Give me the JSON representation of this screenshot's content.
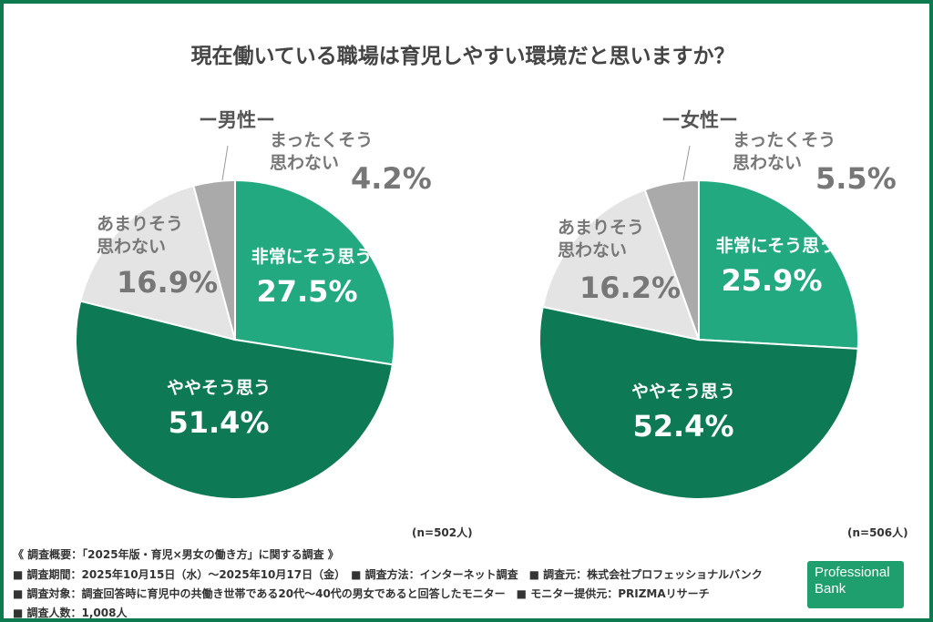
{
  "chart_data": [
    {
      "type": "pie",
      "title": "ー男性ー",
      "n_label": "(n=502人)",
      "start": "12 o'clock",
      "direction": "clockwise",
      "slices": [
        {
          "label": "非常にそう思う",
          "value": 27.5,
          "value_label": "27.5%",
          "color": "#22a97f"
        },
        {
          "label": "ややそう思う",
          "value": 51.4,
          "value_label": "51.4%",
          "color": "#0d7a55"
        },
        {
          "label": "あまりそう思わない",
          "value": 16.9,
          "value_label": "16.9%",
          "color": "#e4e4e4"
        },
        {
          "label": "まったくそう思わない",
          "value": 4.2,
          "value_label": "4.2%",
          "color": "#aaaaaa"
        }
      ]
    },
    {
      "type": "pie",
      "title": "ー女性ー",
      "n_label": "(n=506人)",
      "start": "12 o'clock",
      "direction": "clockwise",
      "slices": [
        {
          "label": "非常にそう思う",
          "value": 25.9,
          "value_label": "25.9%",
          "color": "#22a97f"
        },
        {
          "label": "ややそう思う",
          "value": 52.4,
          "value_label": "52.4%",
          "color": "#0d7a55"
        },
        {
          "label": "あまりそう思わない",
          "value": 16.2,
          "value_label": "16.2%",
          "color": "#e4e4e4"
        },
        {
          "label": "まったくそう思わない",
          "value": 5.5,
          "value_label": "5.5%",
          "color": "#aaaaaa"
        }
      ]
    }
  ],
  "title": "現在働いている職場は育児しやすい環境だと思いますか？",
  "labels": {
    "very": "非常にそう思う",
    "some": "ややそう思う",
    "notmuch1": "あまりそう",
    "notmuch2": "思わない",
    "notall1": "まったくそう",
    "notall2": "思わない"
  },
  "footer": [
    "《 調査概要：「2025年版・育児×男女の働き方」に関する調査 》",
    "■ 調査期間：2025年10月15日（水）～2025年10月17日（金）　■ 調査方法：インターネット調査　■ 調査元：株式会社プロフェッショナルバンク",
    "■ 調査対象：調査回答時に育児中の共働き世帯である20代～40代の男女であると回答したモニター　■ モニター提供元：PRIZMAリサーチ",
    "■ 調査人数：1,008人"
  ],
  "logo": {
    "line1": "Professional",
    "line2": "Bank"
  }
}
